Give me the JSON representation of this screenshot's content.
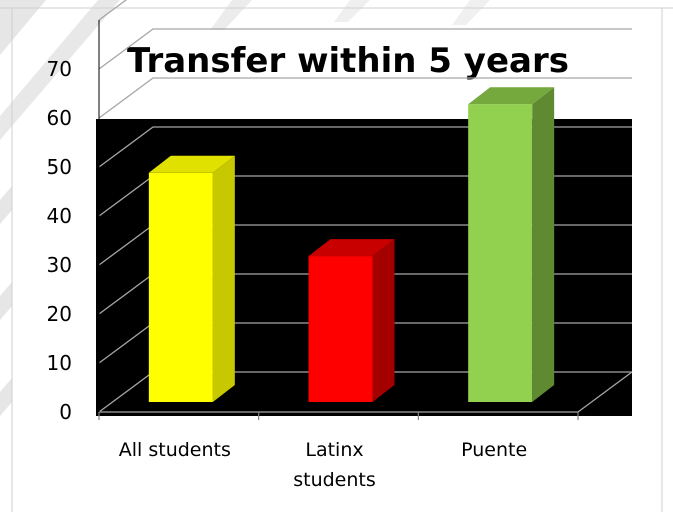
{
  "chart_data": {
    "type": "bar",
    "title": "Transfer within 5 years",
    "xlabel": "",
    "ylabel": "",
    "categories": [
      [
        "All students"
      ],
      [
        "Latinx",
        "students"
      ],
      [
        "Puente"
      ]
    ],
    "values": [
      48,
      31,
      62
    ],
    "ylim": [
      0,
      70
    ],
    "yticks": [
      "0",
      "10",
      "20",
      "30",
      "40",
      "50",
      "60",
      "70"
    ],
    "grid": true,
    "style": "3d-column",
    "colors": {
      "background": "#000000",
      "gridline": "#a6a6a6",
      "bars": [
        {
          "front": "#ffff00",
          "side": "#c8c800",
          "top": "#e1e100"
        },
        {
          "front": "#ff0000",
          "side": "#a50000",
          "top": "#c80000"
        },
        {
          "front": "#92d050",
          "side": "#5f8a31",
          "top": "#75a83d"
        }
      ]
    }
  }
}
